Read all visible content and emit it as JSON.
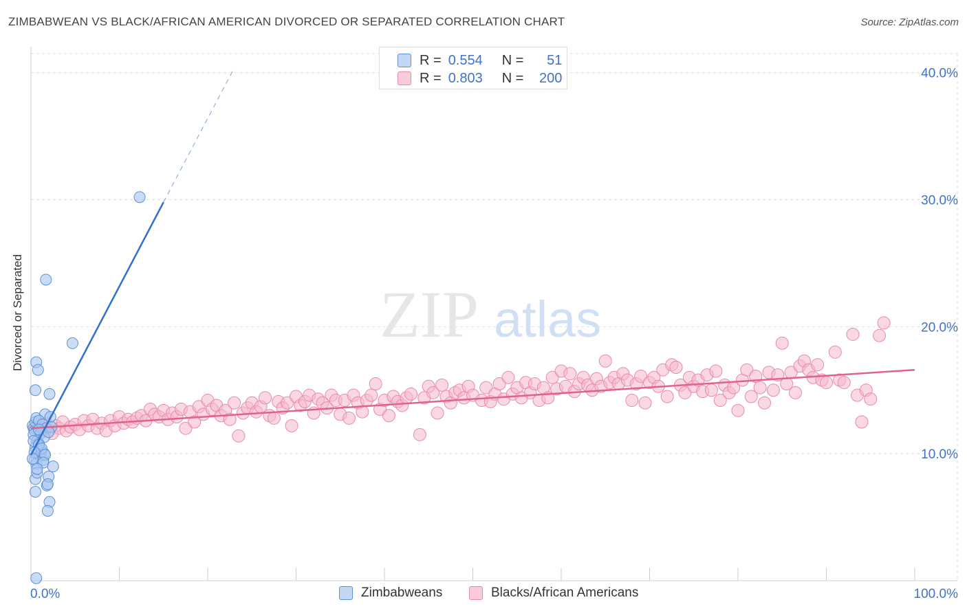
{
  "header": {
    "title": "ZIMBABWEAN VS BLACK/AFRICAN AMERICAN DIVORCED OR SEPARATED CORRELATION CHART",
    "source": "Source: ZipAtlas.com"
  },
  "watermark": {
    "zip": "ZIP",
    "atlas": "atlas"
  },
  "legend_top": {
    "rows": [
      {
        "r_label": "R =",
        "r_value": "0.554",
        "n_label": "N =",
        "n_value": "51"
      },
      {
        "r_label": "R =",
        "r_value": "0.803",
        "n_label": "N =",
        "n_value": "200"
      }
    ]
  },
  "legend_bottom": {
    "items": [
      "Zimbabweans",
      "Blacks/African Americans"
    ]
  },
  "colors": {
    "blue_fill": "#a9c6f0",
    "blue_stroke": "#5b8fd6",
    "blue_line": "#2f6fce",
    "pink_fill": "#f6b8cb",
    "pink_stroke": "#e889a8",
    "pink_line": "#e0628b",
    "tick_text": "#3f72c9",
    "grid": "#dddddd"
  },
  "chart_data": {
    "type": "scatter",
    "ylabel": "Divorced or Separated",
    "xlim": [
      0,
      100
    ],
    "ylim": [
      0,
      41.5
    ],
    "x_tick_labels": [
      "0.0%",
      "100.0%"
    ],
    "y_ticks": [
      10,
      20,
      30,
      40
    ],
    "y_tick_labels": [
      "10.0%",
      "20.0%",
      "30.0%",
      "40.0%"
    ],
    "grid": true,
    "series": [
      {
        "name": "Zimbabweans",
        "points": [
          [
            0.2,
            12.2
          ],
          [
            0.3,
            12.0
          ],
          [
            0.4,
            11.8
          ],
          [
            0.5,
            12.5
          ],
          [
            0.3,
            11.5
          ],
          [
            0.6,
            12.8
          ],
          [
            0.7,
            11.0
          ],
          [
            0.5,
            10.5
          ],
          [
            0.8,
            10.0
          ],
          [
            0.4,
            9.5
          ],
          [
            0.9,
            10.8
          ],
          [
            1.0,
            9.8
          ],
          [
            1.2,
            10.2
          ],
          [
            0.6,
            9.2
          ],
          [
            1.4,
            9.5
          ],
          [
            1.5,
            10.0
          ],
          [
            0.5,
            8.0
          ],
          [
            0.7,
            8.5
          ],
          [
            0.5,
            7.0
          ],
          [
            1.8,
            7.5
          ],
          [
            2.0,
            8.2
          ],
          [
            2.1,
            6.2
          ],
          [
            1.9,
            5.5
          ],
          [
            0.6,
            17.2
          ],
          [
            0.8,
            16.6
          ],
          [
            0.5,
            15.0
          ],
          [
            2.1,
            14.7
          ],
          [
            1.6,
            13.1
          ],
          [
            2.2,
            12.9
          ],
          [
            0.9,
            12.6
          ],
          [
            1.3,
            12.3
          ],
          [
            1.7,
            12.0
          ],
          [
            2.3,
            12.1
          ],
          [
            1.1,
            11.6
          ],
          [
            1.5,
            11.3
          ],
          [
            0.3,
            11.0
          ],
          [
            0.9,
            10.7
          ],
          [
            1.2,
            10.4
          ],
          [
            0.4,
            10.1
          ],
          [
            1.6,
            9.9
          ],
          [
            0.2,
            9.6
          ],
          [
            1.4,
            9.3
          ],
          [
            2.5,
            9.0
          ],
          [
            0.7,
            8.8
          ],
          [
            1.9,
            7.6
          ],
          [
            1.7,
            23.7
          ],
          [
            4.7,
            18.7
          ],
          [
            12.3,
            30.2
          ],
          [
            0.6,
            0.2
          ],
          [
            0.9,
            11.9
          ],
          [
            2.0,
            11.7
          ]
        ]
      },
      {
        "name": "Blacks/African Americans",
        "points": [
          [
            0.5,
            12.0
          ],
          [
            0.8,
            12.3
          ],
          [
            1.1,
            11.8
          ],
          [
            1.4,
            12.1
          ],
          [
            1.7,
            12.4
          ],
          [
            2.0,
            11.9
          ],
          [
            2.4,
            11.6
          ],
          [
            2.8,
            12.2
          ],
          [
            3.2,
            12.0
          ],
          [
            3.6,
            12.5
          ],
          [
            4.0,
            11.8
          ],
          [
            4.5,
            12.1
          ],
          [
            5.0,
            12.3
          ],
          [
            5.5,
            11.9
          ],
          [
            6.0,
            12.6
          ],
          [
            6.5,
            12.2
          ],
          [
            7.0,
            12.7
          ],
          [
            7.5,
            12.0
          ],
          [
            8.0,
            12.4
          ],
          [
            8.5,
            11.8
          ],
          [
            9.0,
            12.6
          ],
          [
            9.5,
            12.2
          ],
          [
            10.0,
            12.9
          ],
          [
            10.5,
            12.4
          ],
          [
            11.0,
            12.7
          ],
          [
            11.5,
            12.5
          ],
          [
            12.0,
            12.8
          ],
          [
            12.5,
            13.0
          ],
          [
            13.0,
            12.6
          ],
          [
            13.5,
            13.5
          ],
          [
            14.0,
            13.1
          ],
          [
            14.5,
            12.9
          ],
          [
            15.0,
            13.4
          ],
          [
            15.5,
            12.7
          ],
          [
            16.0,
            13.2
          ],
          [
            16.5,
            12.9
          ],
          [
            17.0,
            13.5
          ],
          [
            17.5,
            12.0
          ],
          [
            18.0,
            13.3
          ],
          [
            18.5,
            12.5
          ],
          [
            19.0,
            13.7
          ],
          [
            19.5,
            13.1
          ],
          [
            20.0,
            14.2
          ],
          [
            20.5,
            13.5
          ],
          [
            21.0,
            13.8
          ],
          [
            21.5,
            13.0
          ],
          [
            22.0,
            13.4
          ],
          [
            22.5,
            12.7
          ],
          [
            23.0,
            14.0
          ],
          [
            23.5,
            11.4
          ],
          [
            24.0,
            13.2
          ],
          [
            24.5,
            13.6
          ],
          [
            25.0,
            14.0
          ],
          [
            25.5,
            13.3
          ],
          [
            26.0,
            13.7
          ],
          [
            26.5,
            14.4
          ],
          [
            27.0,
            13.0
          ],
          [
            27.5,
            12.8
          ],
          [
            28.0,
            14.1
          ],
          [
            28.5,
            13.6
          ],
          [
            29.0,
            14.0
          ],
          [
            29.5,
            12.2
          ],
          [
            30.0,
            14.5
          ],
          [
            30.5,
            13.8
          ],
          [
            31.0,
            14.1
          ],
          [
            31.5,
            14.6
          ],
          [
            32.0,
            13.2
          ],
          [
            32.5,
            14.3
          ],
          [
            33.0,
            14.0
          ],
          [
            33.5,
            13.6
          ],
          [
            34.0,
            14.6
          ],
          [
            34.5,
            14.2
          ],
          [
            35.0,
            13.1
          ],
          [
            35.5,
            14.2
          ],
          [
            36.0,
            12.8
          ],
          [
            36.5,
            14.6
          ],
          [
            37.0,
            14.0
          ],
          [
            37.5,
            13.3
          ],
          [
            38.0,
            14.2
          ],
          [
            38.5,
            14.6
          ],
          [
            39.0,
            15.5
          ],
          [
            39.5,
            13.5
          ],
          [
            40.0,
            14.2
          ],
          [
            40.5,
            13.0
          ],
          [
            41.0,
            14.5
          ],
          [
            41.5,
            14.1
          ],
          [
            42.0,
            13.8
          ],
          [
            42.5,
            14.4
          ],
          [
            43.0,
            14.7
          ],
          [
            44.0,
            11.5
          ],
          [
            44.5,
            14.4
          ],
          [
            45.0,
            15.3
          ],
          [
            45.5,
            14.8
          ],
          [
            46.0,
            13.2
          ],
          [
            46.5,
            15.4
          ],
          [
            47.0,
            14.5
          ],
          [
            47.5,
            14.0
          ],
          [
            48.0,
            14.8
          ],
          [
            48.5,
            15.0
          ],
          [
            49.0,
            14.4
          ],
          [
            49.5,
            15.3
          ],
          [
            50.0,
            14.6
          ],
          [
            51.0,
            14.2
          ],
          [
            51.5,
            15.2
          ],
          [
            52.0,
            14.1
          ],
          [
            52.5,
            14.7
          ],
          [
            53.0,
            15.5
          ],
          [
            53.5,
            14.3
          ],
          [
            54.0,
            16.0
          ],
          [
            54.5,
            14.7
          ],
          [
            55.0,
            15.2
          ],
          [
            55.5,
            14.4
          ],
          [
            56.0,
            15.6
          ],
          [
            56.5,
            14.8
          ],
          [
            57.0,
            15.5
          ],
          [
            57.5,
            14.2
          ],
          [
            58.0,
            15.2
          ],
          [
            58.5,
            14.4
          ],
          [
            59.0,
            16.0
          ],
          [
            59.5,
            15.1
          ],
          [
            60.0,
            16.5
          ],
          [
            60.5,
            15.3
          ],
          [
            61.0,
            16.3
          ],
          [
            61.5,
            14.9
          ],
          [
            62.0,
            15.5
          ],
          [
            62.5,
            16.0
          ],
          [
            63.0,
            15.4
          ],
          [
            63.5,
            15.0
          ],
          [
            64.0,
            15.9
          ],
          [
            64.5,
            15.3
          ],
          [
            65.0,
            17.3
          ],
          [
            65.5,
            15.6
          ],
          [
            66.0,
            16.0
          ],
          [
            66.5,
            15.5
          ],
          [
            67.0,
            16.3
          ],
          [
            67.5,
            15.8
          ],
          [
            68.0,
            14.2
          ],
          [
            68.5,
            15.5
          ],
          [
            69.0,
            16.1
          ],
          [
            69.5,
            14.0
          ],
          [
            70.0,
            15.6
          ],
          [
            70.5,
            16.0
          ],
          [
            71.0,
            15.3
          ],
          [
            71.5,
            16.6
          ],
          [
            72.0,
            14.5
          ],
          [
            72.5,
            17.0
          ],
          [
            73.0,
            16.8
          ],
          [
            73.5,
            15.4
          ],
          [
            74.0,
            14.8
          ],
          [
            74.5,
            16.0
          ],
          [
            75.0,
            15.3
          ],
          [
            75.5,
            15.8
          ],
          [
            76.0,
            14.9
          ],
          [
            76.5,
            16.2
          ],
          [
            77.0,
            15.0
          ],
          [
            77.5,
            16.5
          ],
          [
            78.0,
            14.2
          ],
          [
            78.5,
            15.4
          ],
          [
            79.0,
            14.8
          ],
          [
            79.5,
            15.2
          ],
          [
            80.0,
            13.4
          ],
          [
            80.5,
            15.8
          ],
          [
            81.0,
            16.6
          ],
          [
            81.5,
            14.5
          ],
          [
            82.0,
            16.1
          ],
          [
            82.5,
            15.2
          ],
          [
            83.0,
            14.0
          ],
          [
            83.5,
            16.4
          ],
          [
            84.0,
            15.0
          ],
          [
            84.5,
            16.2
          ],
          [
            85.0,
            18.7
          ],
          [
            85.5,
            15.5
          ],
          [
            86.0,
            16.4
          ],
          [
            86.5,
            14.8
          ],
          [
            87.0,
            16.9
          ],
          [
            87.5,
            17.3
          ],
          [
            88.0,
            16.6
          ],
          [
            88.5,
            16.0
          ],
          [
            89.0,
            17.0
          ],
          [
            89.5,
            15.8
          ],
          [
            90.0,
            15.6
          ],
          [
            91.0,
            18.0
          ],
          [
            91.5,
            15.8
          ],
          [
            92.0,
            15.6
          ],
          [
            93.0,
            19.4
          ],
          [
            93.5,
            14.6
          ],
          [
            94.0,
            12.5
          ],
          [
            94.5,
            15.0
          ],
          [
            95.0,
            14.3
          ],
          [
            96.0,
            19.3
          ],
          [
            96.5,
            20.3
          ]
        ]
      }
    ],
    "trend_lines": [
      {
        "series": "Zimbabweans",
        "from": [
          0,
          9.9
        ],
        "to": [
          15,
          29.8
        ],
        "dashed_to": [
          22.8,
          40.1
        ]
      },
      {
        "series": "Blacks/African Americans",
        "from": [
          0,
          12.0
        ],
        "to": [
          100,
          16.6
        ]
      }
    ]
  }
}
